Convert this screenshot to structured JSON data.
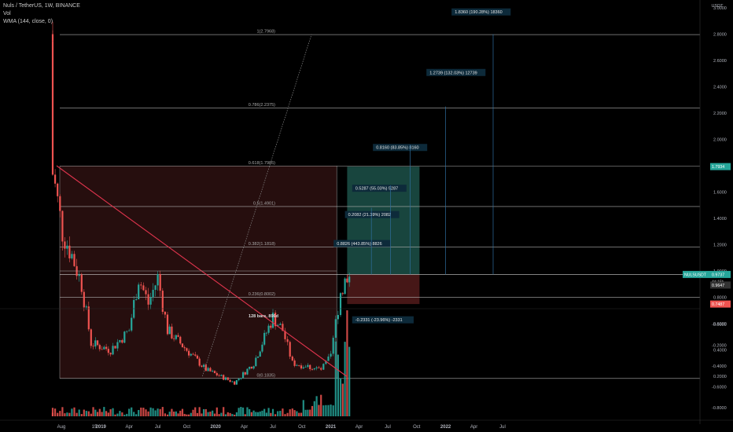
{
  "header": {
    "symbol": "Nuls / TetherUS, 1W, BINANCE",
    "indicator_vol": "Vol",
    "indicator_wma": "WMA (144, close, 0)"
  },
  "colors": {
    "up": "#26a69a",
    "down": "#ef5350",
    "trendline": "#e0344d",
    "fib_line": "#787b86",
    "target_line": "#2e6e9e",
    "label_bg": "#0d2a3a",
    "profit_zone": "#1b4d45",
    "loss_zone": "#4a1818",
    "range_zone": "#2a0f0f"
  },
  "price_axis": {
    "unit_label": "USDT",
    "ticks": [
      "3.0000",
      "2.8000",
      "2.6000",
      "2.4000",
      "2.2000",
      "2.0000",
      "1.8000",
      "1.6000",
      "1.4000",
      "1.2000",
      "1.0000",
      "0.8000",
      "0.6000",
      "0.4000",
      "0.2000"
    ],
    "tag_1": "1.7934",
    "tag_symbol": "NULSUSDT",
    "tag_price": "0.9737",
    "tag_countdown": "4d 15h",
    "tag_2": "0.9647",
    "tag_3": "0.7487"
  },
  "volume_axis": {
    "ticks": [
      "-0.0000",
      "-0.2000",
      "-0.4000",
      "-0.6000",
      "-0.8000"
    ]
  },
  "time_axis": {
    "ticks": [
      "Aug",
      "15",
      "2019",
      "Apr",
      "Jul",
      "Oct",
      "2020",
      "Apr",
      "Jul",
      "Oct",
      "2021",
      "Apr",
      "Jul",
      "Oct",
      "2022",
      "Apr",
      "Jul"
    ]
  },
  "fib": {
    "levels": [
      {
        "ratio": 1,
        "label": "1(2.7968)",
        "price": 2.7968
      },
      {
        "ratio": 0.786,
        "label": "0.786(2.2375)",
        "price": 2.2375
      },
      {
        "ratio": 0.618,
        "label": "0.618(1.7985)",
        "price": 1.7985
      },
      {
        "ratio": 0.5,
        "label": "0.5(1.4901)",
        "price": 1.4901
      },
      {
        "ratio": 0.382,
        "label": "0.382(1.1818)",
        "price": 1.1818
      },
      {
        "ratio": 0.236,
        "label": "0.236(0.8002)",
        "price": 0.8002
      },
      {
        "ratio": 0,
        "label": "0(0.1835)",
        "price": 0.1835
      }
    ]
  },
  "annotations": {
    "bars_range": "128 bars, 896d",
    "range_measure": "0.8826 (443.85%) 8826",
    "target_1": "0.2082 (21.39%) 2082",
    "target_2": "0.5287 (55.03%) 5287",
    "target_3": "0.8160 (83.85%) 8160",
    "target_4": "1.2739 (132.03%) 12739",
    "target_5": "1.8360 (190.28%) 18360",
    "stop": "-0.2331 (-23.96%) -2331"
  },
  "chart_data": {
    "type": "candlestick",
    "title": "Nuls / TetherUS, 1W, BINANCE",
    "xlabel": "",
    "ylabel": "USDT",
    "ylim": [
      0.1,
      3.0
    ],
    "grid": false,
    "price_series": {
      "name": "NULSUSDT",
      "close_path": [
        {
          "t": "2018-08",
          "price": 2.75
        },
        {
          "t": "2018-08",
          "price": 1.75
        },
        {
          "t": "2018-09",
          "price": 1.3
        },
        {
          "t": "2018-10",
          "price": 1.12
        },
        {
          "t": "2018-11",
          "price": 0.9
        },
        {
          "t": "2018-12",
          "price": 0.45
        },
        {
          "t": "2019-02",
          "price": 0.4
        },
        {
          "t": "2019-04",
          "price": 0.55
        },
        {
          "t": "2019-05",
          "price": 0.95
        },
        {
          "t": "2019-06",
          "price": 0.75
        },
        {
          "t": "2019-07",
          "price": 0.95
        },
        {
          "t": "2019-08",
          "price": 0.55
        },
        {
          "t": "2019-10",
          "price": 0.4
        },
        {
          "t": "2019-12",
          "price": 0.25
        },
        {
          "t": "2020-03",
          "price": 0.15
        },
        {
          "t": "2020-05",
          "price": 0.3
        },
        {
          "t": "2020-07",
          "price": 0.65
        },
        {
          "t": "2020-08",
          "price": 0.55
        },
        {
          "t": "2020-09",
          "price": 0.3
        },
        {
          "t": "2020-12",
          "price": 0.25
        },
        {
          "t": "2021-01",
          "price": 0.35
        },
        {
          "t": "2021-02",
          "price": 0.85
        },
        {
          "t": "2021-03",
          "price": 0.9737
        }
      ]
    },
    "trendline": {
      "start": {
        "t": "2018-08",
        "price": 1.8
      },
      "end": {
        "t": "2021-02",
        "price": 0.2
      }
    },
    "current_price": 0.9737,
    "volume_series": {
      "name": "Vol",
      "peak_week": "2021-02"
    }
  }
}
